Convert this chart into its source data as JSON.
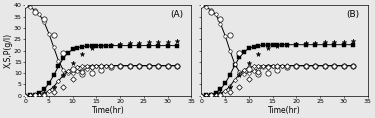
{
  "title_A": "(A)",
  "title_B": "(B)",
  "xlabel": "Time(hr)",
  "ylabel": "X,S,P(g/l)",
  "xlim": [
    0,
    35
  ],
  "ylim": [
    0,
    40
  ],
  "yticks": [
    0,
    5,
    10,
    15,
    20,
    25,
    30,
    35,
    40
  ],
  "xticks": [
    0,
    5,
    10,
    15,
    20,
    25,
    30,
    35
  ],
  "t_exp": [
    0,
    2,
    4,
    6,
    8,
    10,
    12,
    14,
    16,
    18,
    20,
    22,
    24,
    26,
    28,
    30,
    32
  ],
  "X_exp": [
    0.0,
    0.5,
    1.2,
    4.0,
    9.0,
    14.5,
    18.5,
    21.0,
    22.0,
    22.5,
    23.0,
    23.3,
    23.5,
    23.7,
    23.8,
    24.0,
    24.2
  ],
  "S_exp": [
    40,
    37,
    34,
    27,
    19,
    12,
    9.5,
    10.0,
    11.5,
    12.5,
    13.0,
    13.2,
    13.3,
    13.3,
    13.3,
    13.3,
    13.3
  ],
  "P_exp": [
    0.0,
    0.2,
    0.5,
    1.5,
    4.0,
    7.5,
    10.5,
    12.5,
    13.0,
    13.2,
    13.3,
    13.3,
    13.3,
    13.3,
    13.3,
    13.3,
    13.3
  ],
  "t_sim": [
    0,
    1,
    2,
    3,
    4,
    5,
    6,
    7,
    8,
    9,
    10,
    11,
    12,
    13,
    14,
    15,
    16,
    17,
    18,
    20,
    22,
    24,
    26,
    28,
    30,
    32
  ],
  "X_sim_A": [
    0.0,
    0.2,
    0.5,
    1.2,
    2.8,
    5.5,
    9.0,
    13.0,
    16.5,
    19.0,
    20.5,
    21.3,
    21.7,
    22.0,
    22.1,
    22.2,
    22.2,
    22.2,
    22.2,
    22.2,
    22.2,
    22.2,
    22.2,
    22.2,
    22.2,
    22.2
  ],
  "S_sim_A": [
    40,
    39.2,
    38.0,
    36.0,
    32.5,
    27.5,
    21.5,
    15.5,
    11.5,
    10.0,
    10.0,
    10.8,
    11.5,
    12.0,
    12.5,
    13.0,
    13.2,
    13.3,
    13.3,
    13.3,
    13.3,
    13.3,
    13.3,
    13.3,
    13.3,
    13.3
  ],
  "P_sim_A": [
    0.0,
    0.1,
    0.2,
    0.5,
    1.0,
    2.2,
    4.0,
    6.5,
    9.0,
    11.0,
    12.0,
    12.8,
    13.0,
    13.2,
    13.3,
    13.3,
    13.3,
    13.3,
    13.3,
    13.3,
    13.3,
    13.3,
    13.3,
    13.3,
    13.3,
    13.3
  ],
  "X_sim_B": [
    0.0,
    0.2,
    0.5,
    1.2,
    2.8,
    5.5,
    9.2,
    13.5,
    17.0,
    19.5,
    21.0,
    21.8,
    22.2,
    22.4,
    22.5,
    22.6,
    22.6,
    22.6,
    22.6,
    22.6,
    22.6,
    22.6,
    22.6,
    22.6,
    22.6,
    22.6
  ],
  "S_sim_B": [
    40,
    39.2,
    38.0,
    36.0,
    32.0,
    26.5,
    20.0,
    14.0,
    10.5,
    9.8,
    10.2,
    11.0,
    12.0,
    12.5,
    13.0,
    13.2,
    13.3,
    13.3,
    13.3,
    13.3,
    13.3,
    13.3,
    13.3,
    13.3,
    13.3,
    13.3
  ],
  "P_sim_B": [
    0.0,
    0.1,
    0.2,
    0.5,
    1.0,
    2.2,
    4.2,
    7.0,
    9.5,
    11.5,
    12.5,
    13.0,
    13.2,
    13.3,
    13.3,
    13.3,
    13.3,
    13.3,
    13.3,
    13.3,
    13.3,
    13.3,
    13.3,
    13.3,
    13.3,
    13.3
  ],
  "line_color": "black",
  "bg_color": "#e8e8e8",
  "label_fontsize": 5.5,
  "tick_fontsize": 4.5,
  "panel_label_fontsize": 6.5
}
